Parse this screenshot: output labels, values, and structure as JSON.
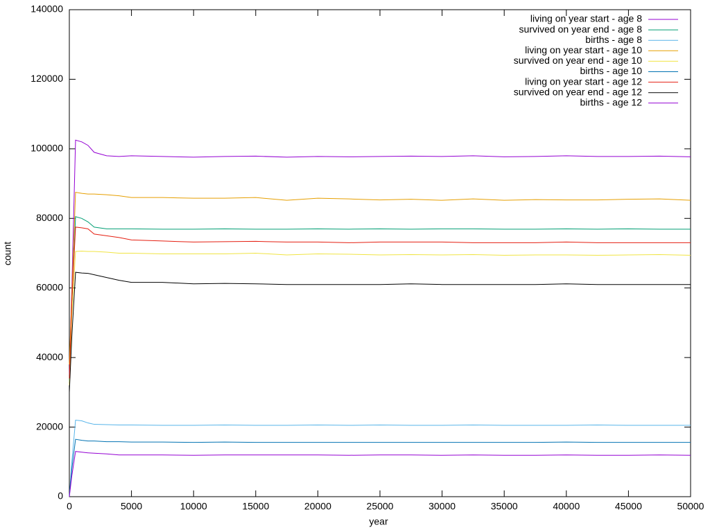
{
  "chart_data": {
    "type": "line",
    "xlabel": "year",
    "ylabel": "count",
    "x": [
      0,
      200,
      500,
      1000,
      1500,
      2000,
      3000,
      4000,
      5000,
      7500,
      10000,
      12500,
      15000,
      17500,
      20000,
      22500,
      25000,
      27500,
      30000,
      32500,
      35000,
      37500,
      40000,
      42500,
      45000,
      47500,
      50000
    ],
    "xlim": [
      0,
      50000
    ],
    "ylim": [
      0,
      140000
    ],
    "xticks": [
      0,
      5000,
      10000,
      15000,
      20000,
      25000,
      30000,
      35000,
      40000,
      45000,
      50000
    ],
    "yticks": [
      0,
      20000,
      40000,
      60000,
      80000,
      100000,
      120000,
      140000
    ],
    "legend": "top-right",
    "series": [
      {
        "name": "living on year start - age 8",
        "color": "#9400d3",
        "values": [
          35000,
          60000,
          102500,
          102000,
          101000,
          99000,
          98000,
          97800,
          98000,
          97800,
          97600,
          97800,
          97900,
          97600,
          97800,
          97700,
          97800,
          97900,
          97800,
          98000,
          97700,
          97800,
          98000,
          97800,
          97800,
          97900,
          97700
        ]
      },
      {
        "name": "survived on year end - age 8",
        "color": "#009e73",
        "values": [
          33000,
          55000,
          80500,
          80000,
          79000,
          77500,
          77000,
          77000,
          77000,
          76900,
          76900,
          77000,
          76900,
          76900,
          77000,
          76900,
          77000,
          76900,
          77000,
          77000,
          76900,
          76900,
          77000,
          76900,
          77000,
          76900,
          76900
        ]
      },
      {
        "name": "births - age 8",
        "color": "#56b4e9",
        "values": [
          0,
          10000,
          22000,
          21800,
          21200,
          20800,
          20700,
          20600,
          20600,
          20500,
          20500,
          20600,
          20500,
          20500,
          20600,
          20500,
          20600,
          20500,
          20500,
          20600,
          20500,
          20500,
          20500,
          20600,
          20500,
          20500,
          20500
        ]
      },
      {
        "name": "living on year start - age 10",
        "color": "#e69f00",
        "values": [
          38000,
          58000,
          87500,
          87200,
          87000,
          87000,
          86800,
          86500,
          86000,
          86000,
          85800,
          85800,
          86000,
          85200,
          85800,
          85600,
          85300,
          85500,
          85200,
          85600,
          85200,
          85400,
          85300,
          85300,
          85500,
          85600,
          85200
        ]
      },
      {
        "name": "survived on year end - age 10",
        "color": "#f0e442",
        "values": [
          32000,
          52000,
          70500,
          70600,
          70500,
          70500,
          70300,
          70000,
          70000,
          69800,
          69800,
          69800,
          70000,
          69500,
          69800,
          69700,
          69500,
          69600,
          69500,
          69600,
          69400,
          69500,
          69500,
          69400,
          69500,
          69600,
          69400
        ]
      },
      {
        "name": "births - age 10",
        "color": "#0072b2",
        "values": [
          0,
          8000,
          16500,
          16200,
          16000,
          16000,
          15800,
          15800,
          15700,
          15700,
          15600,
          15700,
          15600,
          15600,
          15600,
          15600,
          15600,
          15600,
          15600,
          15600,
          15600,
          15600,
          15700,
          15600,
          15600,
          15600,
          15600
        ]
      },
      {
        "name": "living on year start - age 12",
        "color": "#e51e10",
        "values": [
          34000,
          56000,
          77500,
          77300,
          77000,
          75500,
          75000,
          74500,
          73800,
          73500,
          73200,
          73300,
          73400,
          73200,
          73200,
          73000,
          73200,
          73200,
          73200,
          73000,
          73000,
          73000,
          73200,
          73000,
          73000,
          73000,
          73000
        ]
      },
      {
        "name": "survived on year end - age 12",
        "color": "#000000",
        "values": [
          30000,
          46000,
          64500,
          64300,
          64200,
          63800,
          63000,
          62200,
          61600,
          61600,
          61200,
          61300,
          61200,
          61000,
          61000,
          61000,
          61000,
          61200,
          61000,
          61000,
          61000,
          61000,
          61200,
          61000,
          61000,
          61000,
          61000
        ]
      },
      {
        "name": "births - age 12",
        "color": "#9400d3",
        "values": [
          0,
          6000,
          13000,
          12800,
          12600,
          12500,
          12300,
          12000,
          12000,
          12000,
          11900,
          12000,
          12000,
          12000,
          12000,
          11900,
          12000,
          12000,
          11900,
          12000,
          11900,
          11900,
          12000,
          11900,
          11900,
          12000,
          11900
        ]
      }
    ]
  }
}
